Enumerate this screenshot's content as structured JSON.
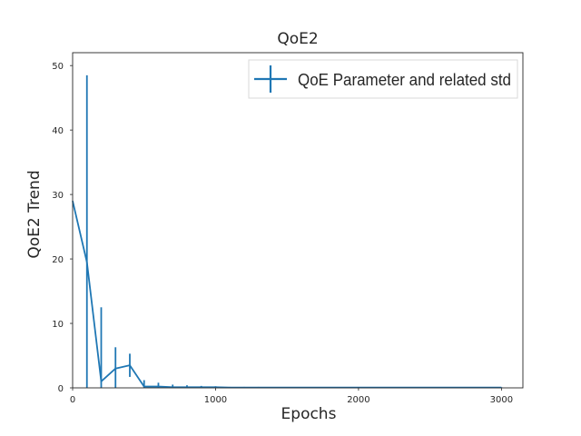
{
  "chart_data": {
    "type": "line",
    "title": "QoE2",
    "xlabel": "Epochs",
    "ylabel": "QoE2 Trend",
    "xlim": [
      0,
      3150
    ],
    "ylim": [
      0,
      52
    ],
    "xticks": [
      0,
      1000,
      2000,
      3000
    ],
    "yticks": [
      0,
      10,
      20,
      30,
      40,
      50
    ],
    "grid": false,
    "legend_position": "top-right",
    "series": [
      {
        "name": "QoE Parameter and related std",
        "color": "#1f77b4",
        "errorbars": true,
        "points": [
          {
            "x": 0,
            "y": 29.0,
            "yerr": 0
          },
          {
            "x": 100,
            "y": 19.5,
            "yerr": 29.0
          },
          {
            "x": 200,
            "y": 1.0,
            "yerr": 11.5
          },
          {
            "x": 300,
            "y": 3.0,
            "yerr": 3.3
          },
          {
            "x": 400,
            "y": 3.5,
            "yerr": 1.8
          },
          {
            "x": 500,
            "y": 0.2,
            "yerr": 1.0
          },
          {
            "x": 600,
            "y": 0.2,
            "yerr": 0.6
          },
          {
            "x": 700,
            "y": 0.1,
            "yerr": 0.4
          },
          {
            "x": 800,
            "y": 0.1,
            "yerr": 0.3
          },
          {
            "x": 900,
            "y": 0.1,
            "yerr": 0.2
          },
          {
            "x": 1000,
            "y": 0.1,
            "yerr": 0.15
          },
          {
            "x": 1100,
            "y": 0.05,
            "yerr": 0.1
          },
          {
            "x": 1200,
            "y": 0.05,
            "yerr": 0.1
          },
          {
            "x": 1300,
            "y": 0.05,
            "yerr": 0.1
          },
          {
            "x": 1400,
            "y": 0.05,
            "yerr": 0.05
          },
          {
            "x": 1500,
            "y": 0.05,
            "yerr": 0.05
          },
          {
            "x": 1600,
            "y": 0.05,
            "yerr": 0.05
          },
          {
            "x": 1700,
            "y": 0.05,
            "yerr": 0.05
          },
          {
            "x": 1800,
            "y": 0.05,
            "yerr": 0.05
          },
          {
            "x": 1900,
            "y": 0.05,
            "yerr": 0.05
          },
          {
            "x": 2000,
            "y": 0.05,
            "yerr": 0.05
          },
          {
            "x": 2100,
            "y": 0.05,
            "yerr": 0.05
          },
          {
            "x": 2200,
            "y": 0.05,
            "yerr": 0.05
          },
          {
            "x": 2300,
            "y": 0.05,
            "yerr": 0.05
          },
          {
            "x": 2400,
            "y": 0.05,
            "yerr": 0.05
          },
          {
            "x": 2500,
            "y": 0.05,
            "yerr": 0.05
          },
          {
            "x": 2600,
            "y": 0.05,
            "yerr": 0.05
          },
          {
            "x": 2700,
            "y": 0.05,
            "yerr": 0.05
          },
          {
            "x": 2800,
            "y": 0.05,
            "yerr": 0.05
          },
          {
            "x": 2900,
            "y": 0.05,
            "yerr": 0.05
          },
          {
            "x": 3000,
            "y": 0.05,
            "yerr": 0.05
          }
        ]
      }
    ]
  }
}
